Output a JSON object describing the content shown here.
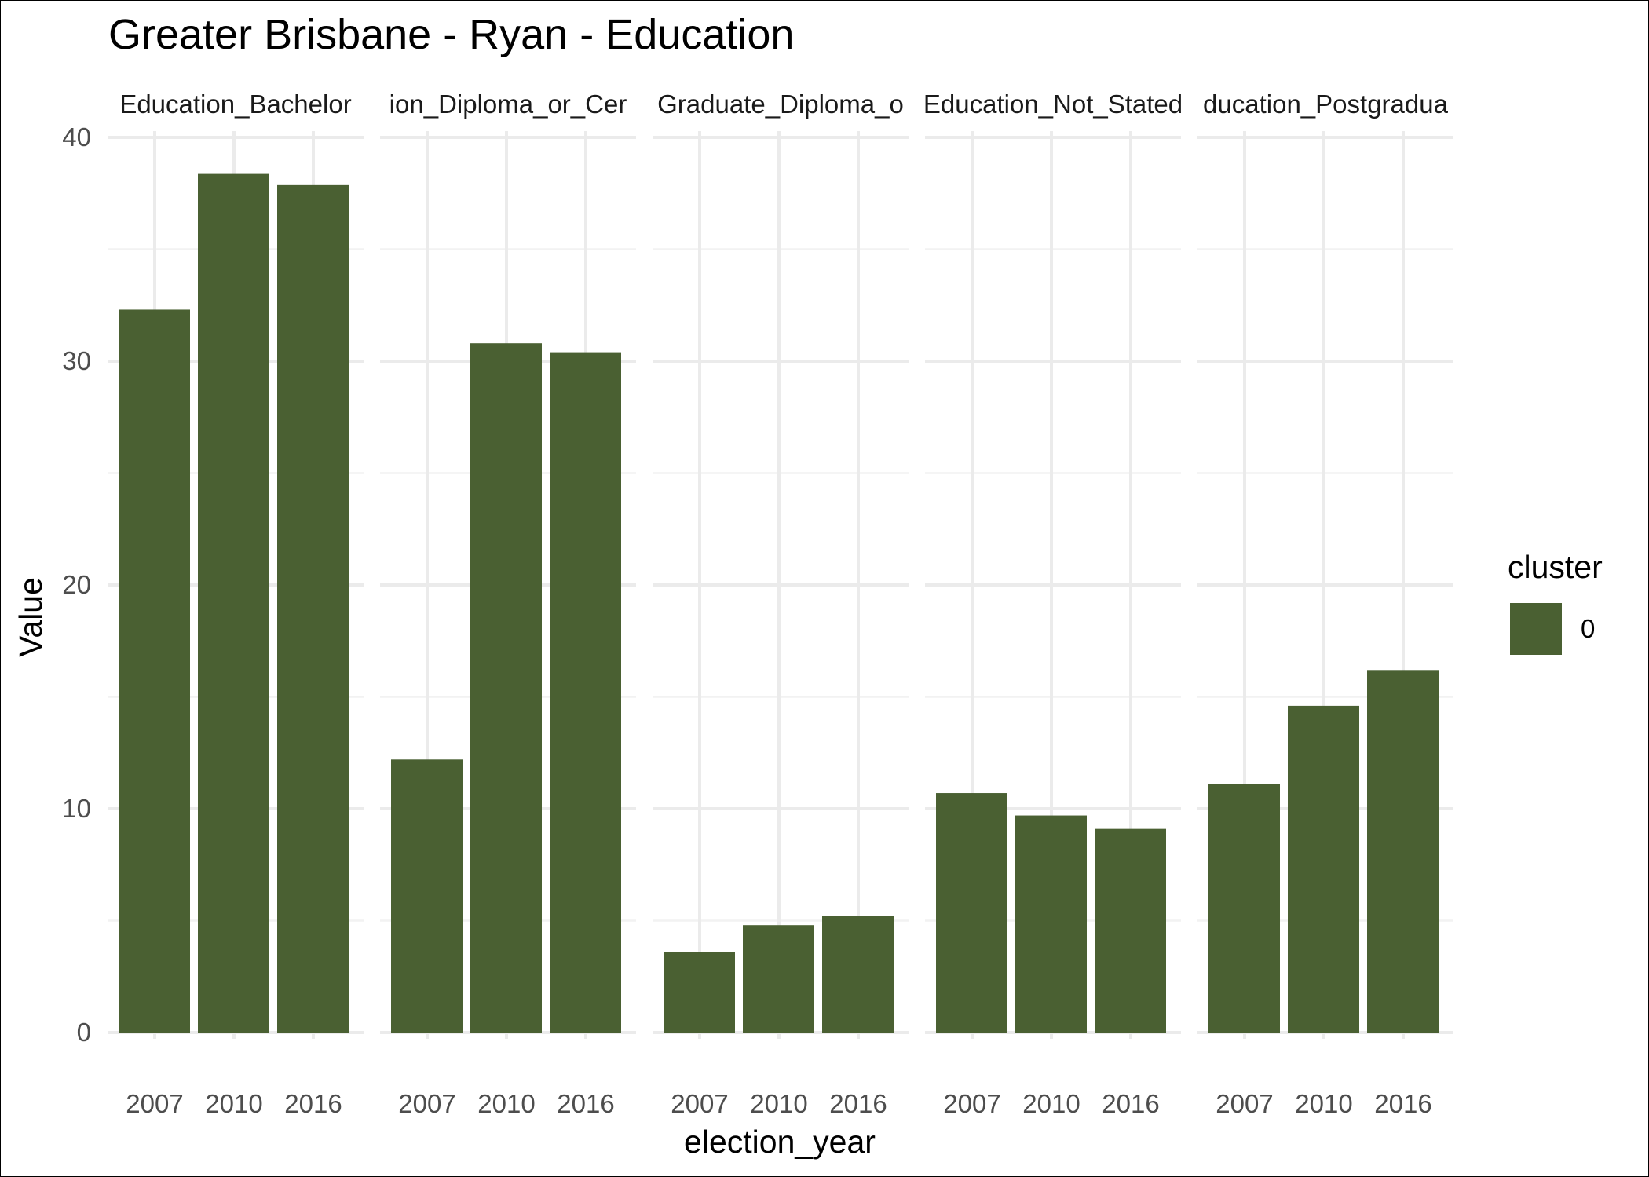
{
  "chart_data": {
    "type": "bar",
    "title": "Greater Brisbane - Ryan - Education",
    "xlabel": "election_year",
    "ylabel": "Value",
    "ylim": [
      0,
      40
    ],
    "y_ticks": [
      0,
      10,
      20,
      30,
      40
    ],
    "grid": true,
    "legend": {
      "title": "cluster",
      "position": "right",
      "entries": [
        {
          "label": "0",
          "color": "#4a6032"
        }
      ]
    },
    "bar_color": "#4a6032",
    "categories": [
      "2007",
      "2010",
      "2016"
    ],
    "facets": [
      {
        "label": "Education_Bachelor",
        "values": [
          32.3,
          38.4,
          37.9
        ]
      },
      {
        "label": "ion_Diploma_or_Cer",
        "values": [
          12.2,
          30.8,
          30.4
        ]
      },
      {
        "label": "Graduate_Diploma_o",
        "values": [
          3.6,
          4.8,
          5.2
        ]
      },
      {
        "label": "Education_Not_Stated",
        "values": [
          10.7,
          9.7,
          9.1
        ]
      },
      {
        "label": "ducation_Postgradua",
        "values": [
          11.1,
          14.6,
          16.2
        ]
      }
    ]
  }
}
